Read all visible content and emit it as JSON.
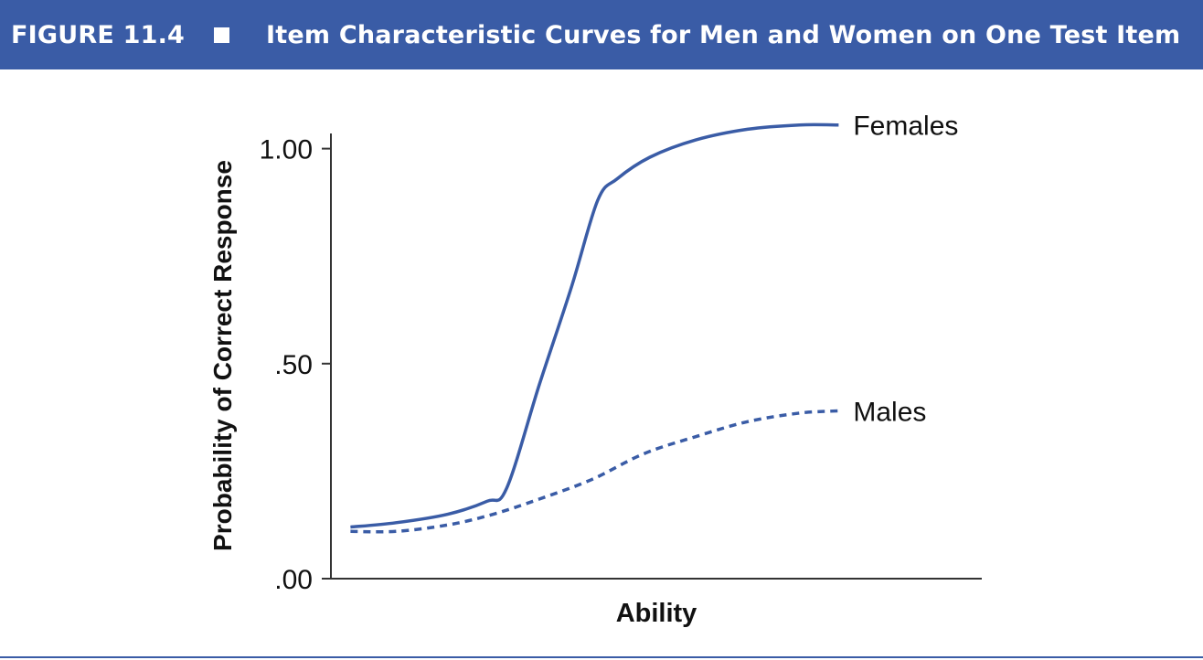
{
  "figure": {
    "label": "FIGURE 11.4",
    "title": "Item Characteristic Curves for Men and Women on One Test Item"
  },
  "colors": {
    "header_bg": "#3a5ca6",
    "curve": "#3a5ca6",
    "axis": "#333333",
    "text": "#111111"
  },
  "chart_data": {
    "type": "line",
    "title": "Item Characteristic Curves for Men and Women on One Test Item",
    "xlabel": "Ability",
    "ylabel": "Probability of Correct Response",
    "xlim": [
      0,
      100
    ],
    "ylim": [
      0,
      1.05
    ],
    "yticks": [
      {
        "value": 0.0,
        "label": ".00"
      },
      {
        "value": 0.5,
        "label": ".50"
      },
      {
        "value": 1.0,
        "label": "1.00"
      }
    ],
    "xticks": [],
    "grid": false,
    "series": [
      {
        "name": "Females",
        "style": "solid",
        "x": [
          3,
          10,
          18,
          24,
          27,
          32,
          37,
          41,
          44,
          49,
          56,
          64,
          72,
          78
        ],
        "y": [
          0.12,
          0.13,
          0.15,
          0.18,
          0.21,
          0.45,
          0.68,
          0.88,
          0.93,
          0.98,
          1.02,
          1.045,
          1.055,
          1.055
        ]
      },
      {
        "name": "Males",
        "style": "dashed",
        "x": [
          3,
          10,
          18,
          25,
          32,
          40,
          48,
          56,
          64,
          72,
          78
        ],
        "y": [
          0.11,
          0.11,
          0.125,
          0.15,
          0.185,
          0.23,
          0.29,
          0.33,
          0.365,
          0.385,
          0.39
        ]
      }
    ]
  }
}
